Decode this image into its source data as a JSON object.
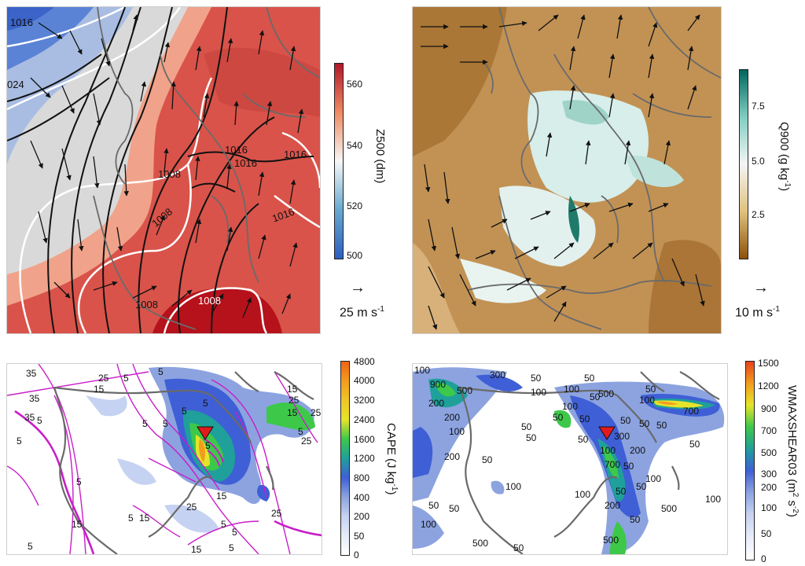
{
  "panels": {
    "z500": {
      "colorbar_label": "Z500 (dm)",
      "ticks": [
        "560",
        "540",
        "520",
        "500"
      ],
      "colors": [
        "#b2182b",
        "#ef8a62",
        "#f7f7f7",
        "#67a9cf",
        "#2c5fbf"
      ],
      "vector_key": "25 m s",
      "vector_key_sup": "-1",
      "contour_labels": [
        "1016",
        "024",
        "1008",
        "1016",
        "1016",
        "1016",
        "1008",
        "1016",
        "1008",
        "1008"
      ]
    },
    "q900": {
      "colorbar_label": "Q900 (g kg",
      "colorbar_label_sup": "-1",
      "colorbar_label_end": ")",
      "ticks": [
        "7.5",
        "5.0",
        "2.5"
      ],
      "colors": [
        "#01665e",
        "#80cdc1",
        "#f5f5f5",
        "#dfc27d",
        "#8c510a"
      ],
      "vector_key": "10 m s",
      "vector_key_sup": "-1"
    },
    "cape": {
      "colorbar_label": "CAPE (J kg",
      "colorbar_label_sup": "-1",
      "colorbar_label_end": ")",
      "ticks": [
        "4800",
        "4000",
        "3200",
        "2400",
        "1600",
        "1200",
        "800",
        "400",
        "200",
        "50",
        "0"
      ],
      "contour_labels": [
        "35",
        "25",
        "5",
        "5",
        "15",
        "35",
        "5",
        "5",
        "35",
        "5",
        "5",
        "15",
        "25",
        "15",
        "5",
        "25",
        "5",
        "5",
        "25",
        "5",
        "15",
        "25",
        "15",
        "15",
        "5",
        "5",
        "5",
        "5",
        "25",
        "5",
        "5",
        "15"
      ]
    },
    "wmaxshear": {
      "colorbar_label": "WMAXSHEAR03 (m",
      "colorbar_label_sup": "2",
      "colorbar_label_mid": " s",
      "colorbar_label_sup2": "-2",
      "colorbar_label_end": ")",
      "ticks": [
        "1500",
        "1200",
        "900",
        "700",
        "500",
        "300",
        "200",
        "100",
        "50",
        "0"
      ],
      "contour_labels": [
        "100",
        "300",
        "50",
        "900",
        "500",
        "100",
        "50",
        "50",
        "50",
        "200",
        "100",
        "500",
        "100",
        "700",
        "50",
        "200",
        "50",
        "50",
        "300",
        "50",
        "100",
        "50",
        "50",
        "50",
        "50",
        "100",
        "200",
        "50",
        "200",
        "100",
        "700",
        "50",
        "50",
        "100",
        "100",
        "100",
        "200",
        "50",
        "500",
        "50",
        "100",
        "50",
        "50",
        "100",
        "50",
        "500",
        "500",
        "50"
      ]
    }
  }
}
